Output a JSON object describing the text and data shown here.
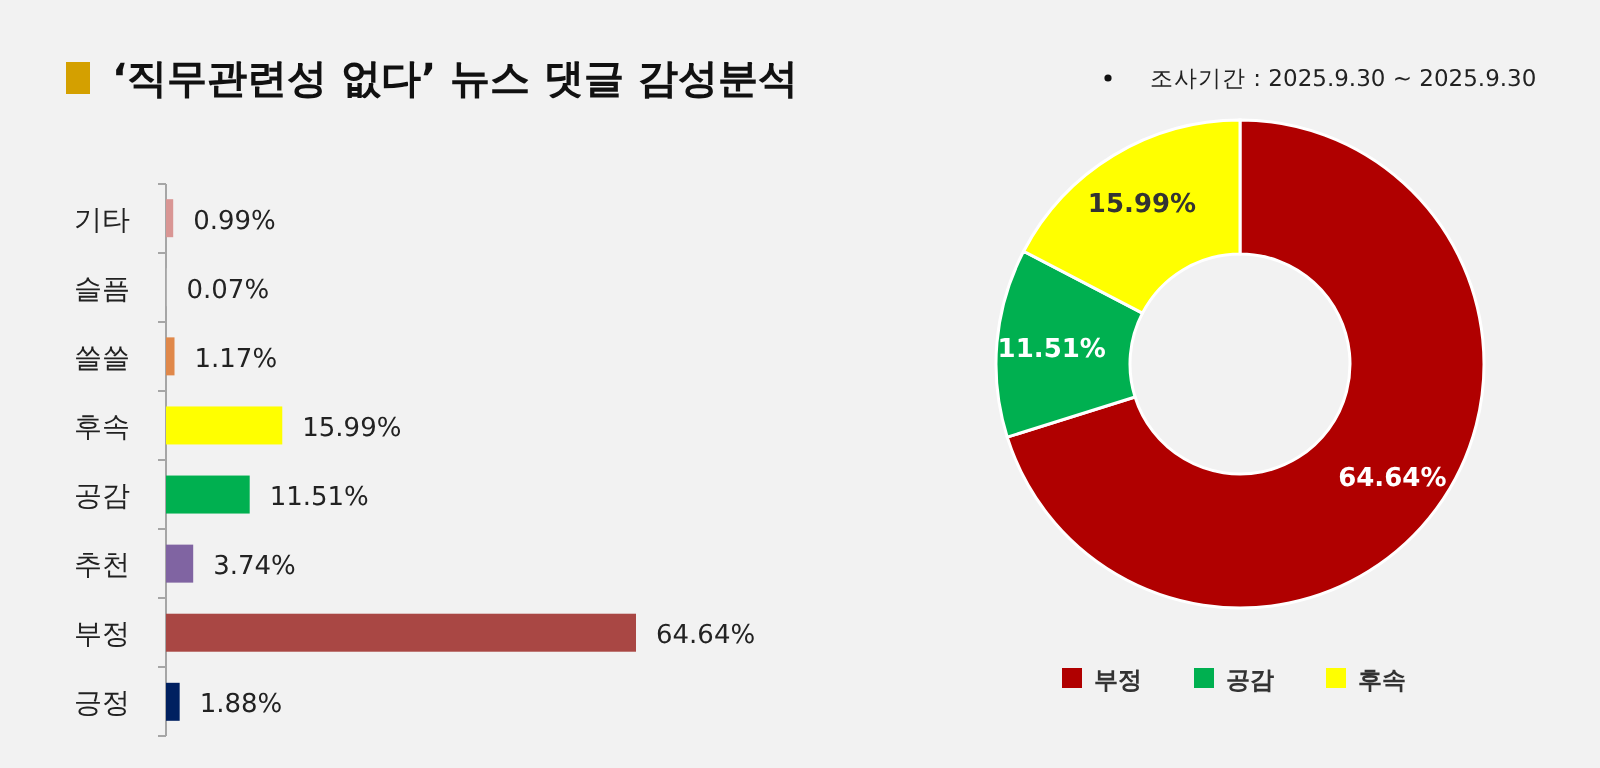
{
  "chart_data": [
    {
      "type": "bar",
      "orientation": "horizontal",
      "title": "‘직무관련성 없다’ 뉴스 댓글 감성분석",
      "annotations": [
        "조사기간 : 2025.9.30 ~ 2025.9.30"
      ],
      "categories": [
        "기타",
        "슬픔",
        "쓸쓸",
        "후속",
        "공감",
        "추천",
        "부정",
        "긍정"
      ],
      "values": [
        0.99,
        0.07,
        1.17,
        15.99,
        11.51,
        3.74,
        64.64,
        1.88
      ],
      "colors": [
        "#d99694",
        "#bfbfbf",
        "#e0884a",
        "#ffff00",
        "#00b050",
        "#8064a2",
        "#a94744",
        "#002060"
      ],
      "value_labels": [
        "0.99%",
        "0.07%",
        "1.17%",
        "15.99%",
        "11.51%",
        "3.74%",
        "64.64%",
        "1.88%"
      ],
      "tick_labels": "y"
    },
    {
      "type": "donut",
      "categories": [
        "부정",
        "공감",
        "후속"
      ],
      "values": [
        64.64,
        11.51,
        15.99
      ],
      "colors": [
        "#b00000",
        "#00b050",
        "#ffff00"
      ],
      "value_labels": [
        "64.64%",
        "11.51%",
        "15.99%"
      ],
      "legend": "bottom"
    }
  ]
}
